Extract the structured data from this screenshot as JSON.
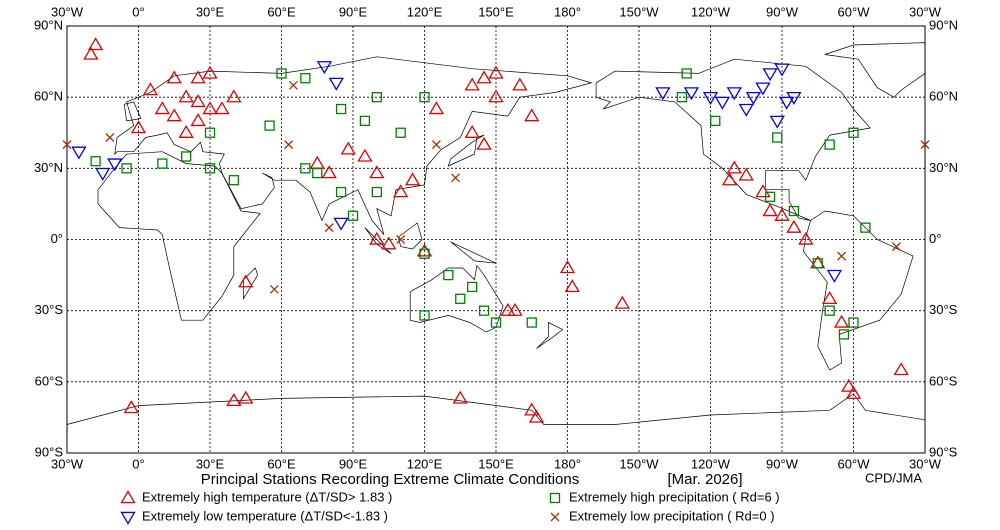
{
  "map": {
    "title": "Principal Stations Recording Extreme Climate Conditions",
    "date": "[Mar. 2026]",
    "credit": "CPD/JMA",
    "lon_labels": [
      {
        "value": -30,
        "label": "30°W"
      },
      {
        "value": 0,
        "label": "0°"
      },
      {
        "value": 30,
        "label": "30°E"
      },
      {
        "value": 60,
        "label": "60°E"
      },
      {
        "value": 90,
        "label": "90°E"
      },
      {
        "value": 120,
        "label": "120°E"
      },
      {
        "value": 150,
        "label": "150°E"
      },
      {
        "value": 180,
        "label": "180°"
      },
      {
        "value": 210,
        "label": "150°W"
      },
      {
        "value": 240,
        "label": "120°W"
      },
      {
        "value": 270,
        "label": "90°W"
      },
      {
        "value": 300,
        "label": "60°W"
      },
      {
        "value": 330,
        "label": "30°W"
      }
    ],
    "lat_labels": [
      {
        "value": 90,
        "label": "90°N"
      },
      {
        "value": 60,
        "label": "60°N"
      },
      {
        "value": 30,
        "label": "30°N"
      },
      {
        "value": 0,
        "label": "0°"
      },
      {
        "value": -30,
        "label": "30°S"
      },
      {
        "value": -60,
        "label": "60°S"
      },
      {
        "value": -90,
        "label": "90°S"
      }
    ],
    "legend": [
      {
        "key": "high_temp",
        "label": "Extremely high temperature (ΔT/SD> 1.83 )",
        "color": "#e00000"
      },
      {
        "key": "low_temp",
        "label": "Extremely low temperature  (ΔT/SD<-1.83 )",
        "color": "#0000ee"
      },
      {
        "key": "high_precip",
        "label": "Extremely high precipitation ( Rd=6 )",
        "color": "#008000"
      },
      {
        "key": "low_precip",
        "label": "Extremely low precipitation ( Rd=0 )",
        "color": "#a33300"
      }
    ],
    "stations": {
      "high_temp": [
        [
          -18,
          82
        ],
        [
          -20,
          78
        ],
        [
          5,
          63
        ],
        [
          15,
          68
        ],
        [
          25,
          68
        ],
        [
          30,
          70
        ],
        [
          20,
          60
        ],
        [
          25,
          58
        ],
        [
          10,
          55
        ],
        [
          15,
          52
        ],
        [
          30,
          55
        ],
        [
          35,
          55
        ],
        [
          40,
          60
        ],
        [
          0,
          47
        ],
        [
          25,
          50
        ],
        [
          20,
          45
        ],
        [
          75,
          32
        ],
        [
          80,
          28
        ],
        [
          88,
          38
        ],
        [
          95,
          35
        ],
        [
          100,
          28
        ],
        [
          110,
          20
        ],
        [
          115,
          25
        ],
        [
          105,
          -2
        ],
        [
          100,
          0
        ],
        [
          140,
          65
        ],
        [
          145,
          68
        ],
        [
          150,
          70
        ],
        [
          160,
          65
        ],
        [
          125,
          55
        ],
        [
          145,
          40
        ],
        [
          140,
          45
        ],
        [
          150,
          60
        ],
        [
          165,
          52
        ],
        [
          180,
          -12
        ],
        [
          182,
          -20
        ],
        [
          203,
          -27
        ],
        [
          250,
          30
        ],
        [
          248,
          25
        ],
        [
          255,
          27
        ],
        [
          262,
          20
        ],
        [
          265,
          12
        ],
        [
          270,
          10
        ],
        [
          275,
          5
        ],
        [
          280,
          0
        ],
        [
          285,
          -10
        ],
        [
          290,
          -25
        ],
        [
          295,
          -35
        ],
        [
          298,
          -62
        ],
        [
          300,
          -65
        ],
        [
          320,
          -55
        ],
        [
          155,
          -30
        ],
        [
          167,
          -75
        ],
        [
          165,
          -72
        ],
        [
          40,
          -68
        ],
        [
          45,
          -67
        ],
        [
          -3,
          -71
        ],
        [
          135,
          -67
        ],
        [
          45,
          -18
        ],
        [
          120,
          -5
        ],
        [
          158,
          -30
        ]
      ],
      "low_temp": [
        [
          -25,
          37
        ],
        [
          -15,
          28
        ],
        [
          -10,
          32
        ],
        [
          78,
          73
        ],
        [
          83,
          66
        ],
        [
          85,
          7
        ],
        [
          220,
          62
        ],
        [
          232,
          62
        ],
        [
          240,
          60
        ],
        [
          245,
          58
        ],
        [
          250,
          62
        ],
        [
          255,
          55
        ],
        [
          258,
          60
        ],
        [
          262,
          64
        ],
        [
          265,
          70
        ],
        [
          270,
          72
        ],
        [
          272,
          58
        ],
        [
          275,
          60
        ],
        [
          268,
          50
        ],
        [
          292,
          -15
        ]
      ],
      "high_precip": [
        [
          -18,
          33
        ],
        [
          -5,
          30
        ],
        [
          10,
          32
        ],
        [
          20,
          35
        ],
        [
          30,
          45
        ],
        [
          30,
          30
        ],
        [
          40,
          25
        ],
        [
          55,
          48
        ],
        [
          60,
          70
        ],
        [
          70,
          68
        ],
        [
          85,
          55
        ],
        [
          100,
          60
        ],
        [
          120,
          60
        ],
        [
          95,
          50
        ],
        [
          110,
          45
        ],
        [
          85,
          20
        ],
        [
          75,
          28
        ],
        [
          70,
          30
        ],
        [
          90,
          10
        ],
        [
          100,
          20
        ],
        [
          120,
          -6
        ],
        [
          130,
          -15
        ],
        [
          135,
          -25
        ],
        [
          140,
          -20
        ],
        [
          145,
          -30
        ],
        [
          150,
          -35
        ],
        [
          120,
          -32
        ],
        [
          165,
          -35
        ],
        [
          230,
          70
        ],
        [
          228,
          60
        ],
        [
          242,
          50
        ],
        [
          268,
          43
        ],
        [
          290,
          40
        ],
        [
          300,
          45
        ],
        [
          265,
          18
        ],
        [
          275,
          12
        ],
        [
          285,
          -10
        ],
        [
          290,
          -30
        ],
        [
          300,
          -35
        ],
        [
          296,
          -40
        ],
        [
          305,
          5
        ]
      ],
      "low_precip": [
        [
          -30,
          40
        ],
        [
          -12,
          43
        ],
        [
          65,
          65
        ],
        [
          57,
          -21
        ],
        [
          80,
          5
        ],
        [
          125,
          40
        ],
        [
          133,
          26
        ],
        [
          110,
          0
        ],
        [
          330,
          40
        ],
        [
          295,
          -7
        ],
        [
          318,
          -3
        ],
        [
          63,
          40
        ]
      ]
    }
  }
}
